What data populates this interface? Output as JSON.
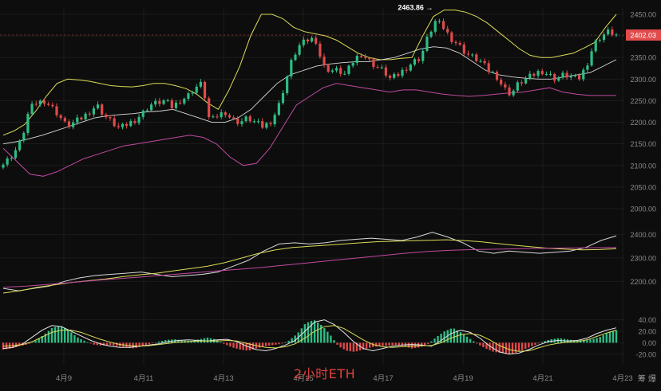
{
  "chart_data": {
    "type": "candlestick",
    "caption": "2小时ETH",
    "corner_label": "筹 爆",
    "colors": {
      "up": "#2ebd85",
      "down": "#e04b4b",
      "upper_band": "#dcdc5a",
      "mid_band": "#d8d8d8",
      "lower_band": "#c04aa0",
      "bg": "#0d0d0d",
      "grid": "#1c1c1c",
      "axis_text": "#8a8a8a"
    },
    "x_ticks": [
      "4月9",
      "4月11",
      "4月13",
      "4月15",
      "4月17",
      "4月19",
      "4月21",
      "4月23"
    ],
    "price_panel": {
      "y_ticks": [
        "2450.00",
        "2400.00",
        "2350.00",
        "2300.00",
        "2250.00",
        "2200.00",
        "2150.00",
        "2100.00",
        "2050.00",
        "2000.00"
      ],
      "ylim": [
        2000,
        2450
      ],
      "current_price": "2402.03",
      "high_marker": "2463.86",
      "close_path": [
        2095,
        2110,
        2130,
        2160,
        2230,
        2245,
        2250,
        2235,
        2215,
        2190,
        2200,
        2210,
        2225,
        2240,
        2215,
        2200,
        2185,
        2195,
        2205,
        2220,
        2240,
        2245,
        2250,
        2235,
        2250,
        2260,
        2280,
        2290,
        2200,
        2215,
        2225,
        2205,
        2200,
        2210,
        2200,
        2190,
        2200,
        2230,
        2290,
        2350,
        2380,
        2390,
        2395,
        2330,
        2320,
        2320,
        2310,
        2340,
        2360,
        2345,
        2330,
        2320,
        2300,
        2310,
        2325,
        2340,
        2350,
        2400,
        2435,
        2420,
        2395,
        2380,
        2360,
        2350,
        2340,
        2320,
        2310,
        2280,
        2265,
        2290,
        2300,
        2310,
        2320,
        2310,
        2300,
        2310,
        2305,
        2300,
        2330,
        2380,
        2400,
        2410,
        2402
      ],
      "upper_band": [
        2170,
        2180,
        2195,
        2225,
        2260,
        2290,
        2300,
        2298,
        2295,
        2290,
        2285,
        2283,
        2282,
        2285,
        2290,
        2290,
        2285,
        2278,
        2265,
        2245,
        2230,
        2275,
        2330,
        2400,
        2450,
        2450,
        2440,
        2420,
        2410,
        2405,
        2400,
        2390,
        2375,
        2360,
        2350,
        2345,
        2345,
        2348,
        2350,
        2400,
        2445,
        2460,
        2460,
        2455,
        2445,
        2430,
        2410,
        2390,
        2370,
        2355,
        2350,
        2350,
        2355,
        2360,
        2372,
        2385,
        2420,
        2450
      ],
      "mid_band": [
        2150,
        2155,
        2162,
        2170,
        2180,
        2190,
        2200,
        2210,
        2215,
        2218,
        2220,
        2224,
        2226,
        2230,
        2220,
        2210,
        2200,
        2200,
        2210,
        2230,
        2260,
        2290,
        2310,
        2320,
        2330,
        2335,
        2338,
        2340,
        2340,
        2345,
        2350,
        2360,
        2370,
        2375,
        2372,
        2360,
        2340,
        2320,
        2310,
        2305,
        2302,
        2300,
        2300,
        2305,
        2310,
        2315,
        2330,
        2345
      ],
      "lower_band": [
        2140,
        2110,
        2080,
        2075,
        2085,
        2100,
        2115,
        2125,
        2135,
        2145,
        2150,
        2155,
        2160,
        2165,
        2170,
        2165,
        2150,
        2120,
        2100,
        2105,
        2140,
        2190,
        2240,
        2260,
        2280,
        2290,
        2285,
        2280,
        2275,
        2270,
        2275,
        2275,
        2270,
        2265,
        2262,
        2260,
        2262,
        2265,
        2268,
        2270,
        2275,
        2280,
        2270,
        2265,
        2262,
        2262,
        2262
      ]
    },
    "ma_panel": {
      "y_ticks": [
        "2400.00",
        "2300.00",
        "2200.00"
      ],
      "ylim": [
        2150,
        2450
      ],
      "series": [
        {
          "key": "fast",
          "values": [
            2170,
            2160,
            2170,
            2180,
            2200,
            2215,
            2225,
            2230,
            2235,
            2240,
            2230,
            2220,
            2225,
            2230,
            2240,
            2265,
            2290,
            2330,
            2360,
            2365,
            2360,
            2365,
            2375,
            2380,
            2385,
            2380,
            2375,
            2390,
            2410,
            2390,
            2365,
            2330,
            2320,
            2330,
            2325,
            2320,
            2325,
            2330,
            2345,
            2375,
            2395
          ]
        },
        {
          "key": "slow",
          "values": [
            2150,
            2160,
            2175,
            2185,
            2195,
            2203,
            2210,
            2220,
            2228,
            2235,
            2245,
            2255,
            2265,
            2280,
            2300,
            2320,
            2335,
            2345,
            2350,
            2355,
            2360,
            2365,
            2370,
            2372,
            2374,
            2376,
            2378,
            2375,
            2370,
            2362,
            2355,
            2348,
            2342,
            2338,
            2335,
            2336,
            2340
          ]
        },
        {
          "key": "long",
          "values": [
            2175,
            2180,
            2188,
            2196,
            2205,
            2212,
            2220,
            2228,
            2236,
            2244,
            2252,
            2260,
            2270,
            2280,
            2290,
            2300,
            2310,
            2320,
            2328,
            2333,
            2336,
            2338,
            2340,
            2342,
            2343,
            2344,
            2345
          ]
        }
      ]
    },
    "macd_panel": {
      "y_ticks": [
        "40.00",
        "20.00",
        "0.00",
        "-20.00"
      ],
      "ylim": [
        -30,
        45
      ],
      "histogram": [
        -12,
        -10,
        -6,
        -3,
        4,
        14,
        26,
        30,
        22,
        10,
        3,
        -3,
        -5,
        -4,
        -6,
        -8,
        -10,
        -6,
        -2,
        2,
        5,
        6,
        4,
        3,
        6,
        9,
        6,
        -2,
        -8,
        -12,
        -14,
        -10,
        -6,
        -4,
        -2,
        4,
        16,
        34,
        40,
        30,
        14,
        -6,
        -14,
        -16,
        -12,
        -8,
        -6,
        -5,
        -4,
        -6,
        -10,
        -8,
        -2,
        10,
        20,
        26,
        18,
        8,
        -2,
        -10,
        -16,
        -18,
        -20,
        -16,
        -10,
        -4,
        2,
        6,
        8,
        6,
        4,
        5,
        6,
        10,
        18,
        22
      ],
      "dif_line": [
        -10,
        -8,
        -2,
        10,
        22,
        30,
        28,
        20,
        12,
        4,
        -2,
        -6,
        -8,
        -8,
        -6,
        -4,
        -2,
        2,
        4,
        5,
        4,
        3,
        5,
        6,
        2,
        -6,
        -12,
        -14,
        -10,
        -4,
        4,
        20,
        36,
        40,
        32,
        18,
        2,
        -10,
        -14,
        -10,
        -6,
        -4,
        -3,
        -4,
        -6,
        4,
        16,
        22,
        18,
        8,
        -6,
        -16,
        -20,
        -18,
        -12,
        -4,
        2,
        4,
        3,
        4,
        8,
        16,
        22,
        26
      ],
      "dea_line": [
        -6,
        -5,
        -3,
        2,
        10,
        18,
        22,
        22,
        18,
        12,
        6,
        1,
        -3,
        -5,
        -6,
        -5,
        -3,
        -1,
        1,
        2,
        3,
        3,
        3,
        4,
        3,
        -1,
        -5,
        -8,
        -9,
        -7,
        -2,
        8,
        20,
        28,
        30,
        25,
        15,
        5,
        -3,
        -7,
        -8,
        -7,
        -6,
        -5,
        -5,
        0,
        8,
        14,
        16,
        13,
        5,
        -5,
        -12,
        -15,
        -14,
        -9,
        -4,
        -1,
        1,
        2,
        5,
        11,
        17,
        22
      ]
    }
  }
}
